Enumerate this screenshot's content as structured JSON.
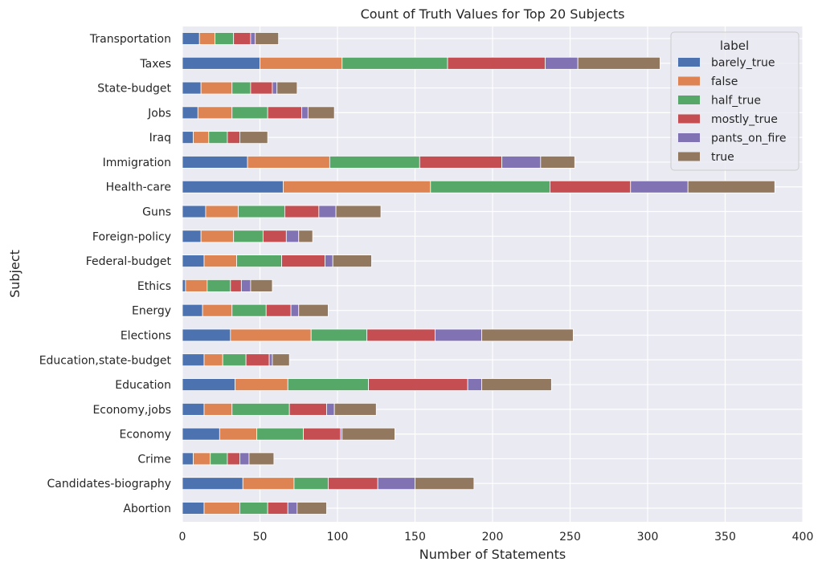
{
  "chart_data": {
    "type": "bar",
    "orientation": "horizontal",
    "stacked": true,
    "title": "Count of Truth Values for Top 20 Subjects",
    "xlabel": "Number of Statements",
    "ylabel": "Subject",
    "xlim": [
      0,
      400
    ],
    "xticks": [
      "0",
      "50",
      "100",
      "150",
      "200",
      "250",
      "300",
      "350",
      "400"
    ],
    "grid": true,
    "legend_title": "label",
    "legend_position": "top-right",
    "categories": [
      "Transportation",
      "Taxes",
      "State-budget",
      "Jobs",
      "Iraq",
      "Immigration",
      "Health-care",
      "Guns",
      "Foreign-policy",
      "Federal-budget",
      "Ethics",
      "Energy",
      "Elections",
      "Education,state-budget",
      "Education",
      "Economy,jobs",
      "Economy",
      "Crime",
      "Candidates-biography",
      "Abortion"
    ],
    "series": [
      {
        "name": "barely_true",
        "color": "#4c72b0",
        "values": [
          11,
          50,
          12,
          10,
          7,
          42,
          65,
          15,
          12,
          14,
          2,
          13,
          31,
          14,
          34,
          14,
          24,
          7,
          39,
          14
        ]
      },
      {
        "name": "false",
        "color": "#dd8452",
        "values": [
          10,
          53,
          20,
          22,
          10,
          53,
          95,
          21,
          21,
          21,
          14,
          19,
          52,
          12,
          34,
          18,
          24,
          11,
          33,
          23
        ]
      },
      {
        "name": "half_true",
        "color": "#55a868",
        "values": [
          12,
          68,
          12,
          23,
          12,
          58,
          77,
          30,
          19,
          29,
          15,
          22,
          36,
          15,
          52,
          37,
          30,
          11,
          22,
          18
        ]
      },
      {
        "name": "mostly_true",
        "color": "#c44e52",
        "values": [
          11,
          63,
          14,
          22,
          8,
          53,
          52,
          22,
          15,
          28,
          7,
          16,
          44,
          15,
          64,
          24,
          24,
          8,
          32,
          13
        ]
      },
      {
        "name": "pants_on_fire",
        "color": "#8172b3",
        "values": [
          3,
          21,
          3,
          4,
          0,
          25,
          37,
          11,
          8,
          5,
          6,
          5,
          30,
          2,
          9,
          5,
          1,
          6,
          24,
          6
        ]
      },
      {
        "name": "true",
        "color": "#937860",
        "values": [
          15,
          53,
          13,
          17,
          18,
          22,
          56,
          29,
          9,
          25,
          14,
          19,
          59,
          11,
          45,
          27,
          34,
          16,
          38,
          19
        ]
      }
    ]
  }
}
